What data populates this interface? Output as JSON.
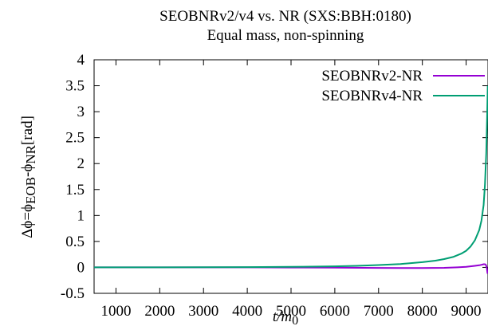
{
  "chart_data": {
    "type": "line",
    "title": "SEOBNRv2/v4 vs. NR (SXS:BBH:0180)",
    "subtitle": "Equal mass, non-spinning",
    "xlabel": {
      "base": "t/m",
      "sub": "0"
    },
    "ylabel": {
      "parts": [
        {
          "text": "Δϕ=ϕ",
          "sub": false
        },
        {
          "text": "EOB",
          "sub": true
        },
        {
          "text": "-ϕ",
          "sub": false
        },
        {
          "text": "NR",
          "sub": true
        },
        {
          "text": "[rad]",
          "sub": false
        }
      ]
    },
    "xlim": [
      500,
      9500
    ],
    "ylim": [
      -0.5,
      4
    ],
    "xticks": [
      1000,
      2000,
      3000,
      4000,
      5000,
      6000,
      7000,
      8000,
      9000
    ],
    "xtick_labels": [
      "1000",
      "2000",
      "3000",
      "4000",
      "5000",
      "6000",
      "7000",
      "8000",
      "9000"
    ],
    "yticks": [
      -0.5,
      0,
      0.5,
      1,
      1.5,
      2,
      2.5,
      3,
      3.5,
      4
    ],
    "ytick_labels": [
      "-0.5",
      "0",
      "0.5",
      "1",
      "1.5",
      "2",
      "2.5",
      "3",
      "3.5",
      "4"
    ],
    "grid": false,
    "legend_position": "top-right",
    "series": [
      {
        "name": "SEOBNRv2-NR",
        "color": "#9400d3",
        "x": [
          500,
          1000,
          2000,
          3000,
          4000,
          5000,
          6000,
          7000,
          7500,
          8000,
          8500,
          8800,
          9000,
          9100,
          9200,
          9300,
          9350,
          9400,
          9430,
          9450,
          9470,
          9490
        ],
        "y": [
          0,
          0,
          0,
          0,
          0,
          -0.002,
          -0.005,
          -0.01,
          -0.012,
          -0.012,
          -0.008,
          0.0,
          0.01,
          0.02,
          0.03,
          0.04,
          0.05,
          0.06,
          0.06,
          0.05,
          0.0,
          -0.12
        ]
      },
      {
        "name": "SEOBNRv4-NR",
        "color": "#009e73",
        "x": [
          500,
          1000,
          2000,
          3000,
          4000,
          5000,
          6000,
          6500,
          7000,
          7500,
          8000,
          8300,
          8500,
          8700,
          8900,
          9000,
          9100,
          9200,
          9300,
          9350,
          9400,
          9430,
          9460,
          9480,
          9495
        ],
        "y": [
          0,
          0,
          0,
          0.002,
          0.005,
          0.01,
          0.02,
          0.03,
          0.045,
          0.065,
          0.1,
          0.13,
          0.16,
          0.2,
          0.27,
          0.32,
          0.4,
          0.52,
          0.72,
          0.9,
          1.2,
          1.6,
          2.2,
          2.9,
          3.5
        ]
      }
    ]
  }
}
